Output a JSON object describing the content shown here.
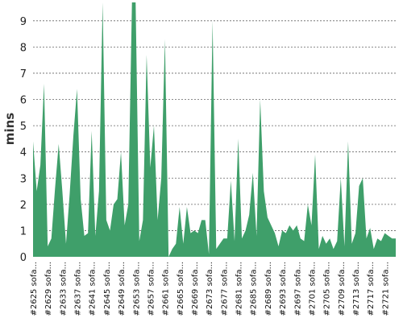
{
  "chart_data": {
    "type": "area",
    "title": "",
    "xlabel": "",
    "ylabel": "mins",
    "ylim": [
      0,
      9.7
    ],
    "yticks": [
      0,
      1,
      2,
      3,
      4,
      5,
      6,
      7,
      8,
      9
    ],
    "grid": true,
    "color": "#3f9f6a",
    "xtick_labels": [
      "#2625 sofa...",
      "#2629 sofa...",
      "#2633 sofa...",
      "#2637 sofa...",
      "#2641 sofa...",
      "#2645 sofa...",
      "#2649 sofa...",
      "#2653 sofa...",
      "#2657 sofa...",
      "#2661 sofa...",
      "#2665 sofa...",
      "#2669 sofa...",
      "#2673 sofa...",
      "#2677 sofa...",
      "#2681 sofa...",
      "#2685 sofa...",
      "#2689 sofa...",
      "#2693 sofa...",
      "#2697 sofa...",
      "#2701 sofa...",
      "#2705 sofa...",
      "#2709 sofa...",
      "#2713 sofa...",
      "#2717 sofa...",
      "#2721 sofa..."
    ],
    "x": [
      2625,
      2626,
      2627,
      2628,
      2629,
      2630,
      2631,
      2632,
      2633,
      2634,
      2635,
      2636,
      2637,
      2638,
      2639,
      2640,
      2641,
      2642,
      2643,
      2644,
      2645,
      2646,
      2647,
      2648,
      2649,
      2650,
      2651,
      2652,
      2653,
      2654,
      2655,
      2656,
      2657,
      2658,
      2659,
      2660,
      2661,
      2662,
      2663,
      2664,
      2665,
      2666,
      2667,
      2668,
      2669,
      2670,
      2671,
      2672,
      2673,
      2674,
      2675,
      2676,
      2677,
      2678,
      2679,
      2680,
      2681,
      2682,
      2683,
      2684,
      2685,
      2686,
      2687,
      2688,
      2689,
      2690,
      2691,
      2692,
      2693,
      2694,
      2695,
      2696,
      2697,
      2698,
      2699,
      2700,
      2701,
      2702,
      2703,
      2704,
      2705,
      2706,
      2707,
      2708,
      2709,
      2710,
      2711,
      2712,
      2713,
      2714,
      2715,
      2716,
      2717,
      2718,
      2719,
      2720,
      2721,
      2722,
      2723,
      2724
    ],
    "values": [
      4.4,
      2.5,
      3.5,
      6.6,
      0.4,
      0.7,
      2.6,
      4.3,
      2.5,
      0.5,
      2.4,
      4.6,
      6.4,
      2.2,
      0.8,
      0.9,
      4.8,
      0.8,
      2.5,
      9.7,
      1.4,
      1.0,
      2.0,
      2.2,
      4.0,
      1.2,
      2.0,
      9.7,
      9.7,
      0.6,
      1.4,
      7.7,
      3.4,
      5.0,
      1.4,
      3.0,
      8.3,
      0.0,
      0.3,
      0.5,
      1.9,
      0.5,
      1.9,
      0.9,
      1.0,
      0.9,
      1.4,
      1.4,
      0.1,
      9.0,
      0.3,
      0.5,
      0.7,
      0.7,
      2.9,
      0.6,
      4.5,
      0.7,
      1.0,
      1.6,
      3.2,
      0.8,
      6.0,
      2.5,
      1.5,
      1.2,
      0.9,
      0.4,
      1.0,
      0.9,
      1.2,
      1.0,
      1.2,
      0.7,
      0.6,
      2.0,
      1.2,
      3.9,
      0.3,
      0.8,
      0.5,
      0.7,
      0.3,
      0.6,
      3.0,
      0.4,
      4.4,
      0.5,
      0.9,
      2.7,
      3.0,
      0.7,
      1.1,
      0.3,
      0.7,
      0.6,
      0.9,
      0.8,
      0.7,
      0.7
    ]
  }
}
